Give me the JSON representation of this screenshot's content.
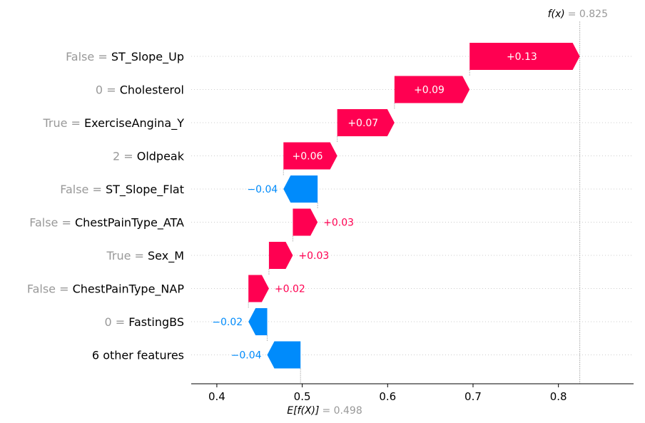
{
  "chart_data": {
    "type": "waterfall",
    "base_value": 0.498,
    "final_value": 0.825,
    "top_label": {
      "fx": "f(x)",
      "value": "= 0.825"
    },
    "bottom_label": {
      "efx": "E[f(X)]",
      "value": "= 0.498"
    },
    "xlim": [
      0.37,
      0.888
    ],
    "xticks": [
      0.4,
      0.5,
      0.6,
      0.7,
      0.8
    ],
    "xtick_labels": [
      "0.4",
      "0.5",
      "0.6",
      "0.7",
      "0.8"
    ],
    "colors": {
      "positive": "#ff0051",
      "negative": "#008bfb",
      "value_gray": "#999999",
      "grid": "#cccccc"
    },
    "features": [
      {
        "value": "False",
        "name": "ST_Slope_Up",
        "contribution": 0.13,
        "label": "+0.13"
      },
      {
        "value": "0",
        "name": "Cholesterol",
        "contribution": 0.09,
        "label": "+0.09"
      },
      {
        "value": "True",
        "name": "ExerciseAngina_Y",
        "contribution": 0.07,
        "label": "+0.07"
      },
      {
        "value": "2",
        "name": "Oldpeak",
        "contribution": 0.06,
        "label": "+0.06"
      },
      {
        "value": "False",
        "name": "ST_Slope_Flat",
        "contribution": -0.04,
        "label": "−0.04"
      },
      {
        "value": "False",
        "name": "ChestPainType_ATA",
        "contribution": 0.03,
        "label": "+0.03"
      },
      {
        "value": "True",
        "name": "Sex_M",
        "contribution": 0.03,
        "label": "+0.03"
      },
      {
        "value": "False",
        "name": "ChestPainType_NAP",
        "contribution": 0.02,
        "label": "+0.02"
      },
      {
        "value": "0",
        "name": "FastingBS",
        "contribution": -0.02,
        "label": "−0.02"
      },
      {
        "value": "",
        "name": "6 other features",
        "contribution": -0.04,
        "label": "−0.04"
      }
    ],
    "bar_bounds": [
      [
        0.696,
        0.825
      ],
      [
        0.608,
        0.696
      ],
      [
        0.541,
        0.608
      ],
      [
        0.478,
        0.541
      ],
      [
        0.478,
        0.518
      ],
      [
        0.489,
        0.518
      ],
      [
        0.461,
        0.489
      ],
      [
        0.437,
        0.461
      ],
      [
        0.437,
        0.459
      ],
      [
        0.459,
        0.498
      ]
    ]
  }
}
